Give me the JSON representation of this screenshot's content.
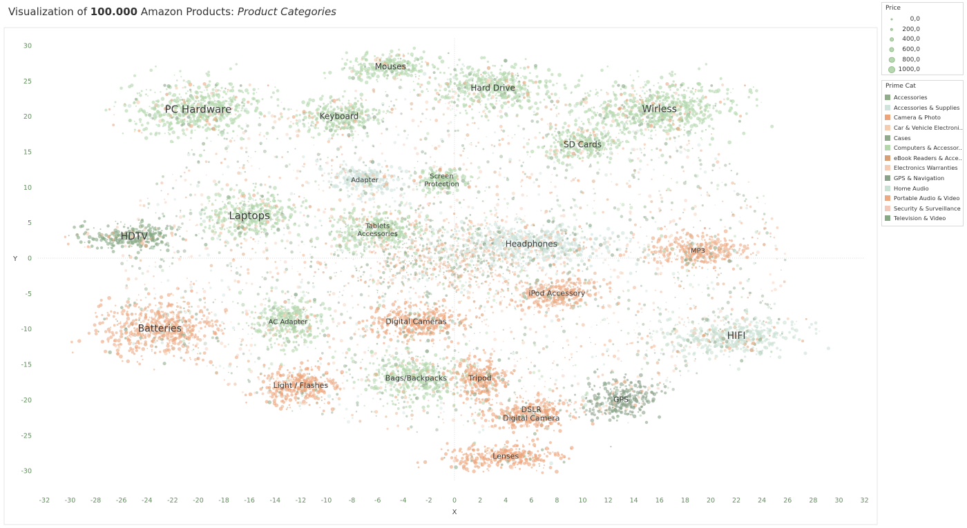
{
  "title": {
    "prefix": "Visualization of ",
    "count": "100.000",
    "middle": " Amazon Products: ",
    "suffix": "Product Categories"
  },
  "price_legend": {
    "title": "Price",
    "items": [
      {
        "label": "0,0",
        "value": 0
      },
      {
        "label": "200,0",
        "value": 200
      },
      {
        "label": "400,0",
        "value": 400
      },
      {
        "label": "600,0",
        "value": 600
      },
      {
        "label": "800,0",
        "value": 800
      },
      {
        "label": "1000,0",
        "value": 1000
      }
    ]
  },
  "category_legend": {
    "title": "Prime Cat",
    "items": [
      {
        "label": "Accessories",
        "color": "#90ad8a"
      },
      {
        "label": "Accessories & Supplies",
        "color": "#cfe3dc"
      },
      {
        "label": "Camera & Photo",
        "color": "#eda47a"
      },
      {
        "label": "Car & Vehicle Electroni..",
        "color": "#f4cdb1"
      },
      {
        "label": "Cases",
        "color": "#91a98c"
      },
      {
        "label": "Computers & Accessor..",
        "color": "#b3d7ab"
      },
      {
        "label": "eBook Readers & Acce..",
        "color": "#d89f75"
      },
      {
        "label": "Electronics Warranties",
        "color": "#f3ccb3"
      },
      {
        "label": "GPS & Navigation",
        "color": "#8aa28a"
      },
      {
        "label": "Home Audio",
        "color": "#c9e1d3"
      },
      {
        "label": "Portable Audio & Video",
        "color": "#ecaa83"
      },
      {
        "label": "Security & Surveillance",
        "color": "#f2c9b8"
      },
      {
        "label": "Television & Video",
        "color": "#86a884"
      }
    ]
  },
  "chart_data": {
    "type": "scatter",
    "xlabel": "X",
    "ylabel": "Y",
    "xlim": [
      -33,
      33
    ],
    "ylim": [
      -33,
      32
    ],
    "xticks": [
      -32,
      -30,
      -28,
      -26,
      -24,
      -22,
      -20,
      -18,
      -16,
      -14,
      -12,
      -10,
      -8,
      -6,
      -4,
      -2,
      0,
      2,
      4,
      6,
      8,
      10,
      12,
      14,
      16,
      18,
      20,
      22,
      24,
      26,
      28,
      30,
      32
    ],
    "yticks": [
      30,
      25,
      20,
      15,
      10,
      5,
      0,
      -5,
      -10,
      -15,
      -20,
      -25,
      -30
    ],
    "grid": false,
    "legend": "right",
    "size_encoding": "Price",
    "color_encoding": "Prime Cat",
    "clusters": [
      {
        "label": "PC Hardware",
        "x": -20,
        "y": 21,
        "sx": 4.5,
        "sy": 3.5,
        "color": "#b3d7ab",
        "size": 15
      },
      {
        "label": "Mouses",
        "x": -5,
        "y": 27,
        "sx": 3,
        "sy": 1.7,
        "color": "#b3d7ab",
        "size": 12
      },
      {
        "label": "Hard Drive",
        "x": 3,
        "y": 24,
        "sx": 4,
        "sy": 3,
        "color": "#b3d7ab",
        "size": 12
      },
      {
        "label": "Keyboard",
        "x": -9,
        "y": 20,
        "sx": 2.8,
        "sy": 2.2,
        "color": "#b3d7ab",
        "size": 12
      },
      {
        "label": "Wirless",
        "x": 16,
        "y": 21,
        "sx": 5.5,
        "sy": 3.5,
        "color": "#b3d7ab",
        "size": 14
      },
      {
        "label": "SD Cards",
        "x": 10,
        "y": 16,
        "sx": 2.5,
        "sy": 2,
        "color": "#b3d7ab",
        "size": 12
      },
      {
        "label": "Adapter",
        "x": -7,
        "y": 11,
        "sx": 2.5,
        "sy": 2,
        "color": "#cfe3dc",
        "size": 10
      },
      {
        "label": "Screen\nProtection",
        "x": -1,
        "y": 11,
        "sx": 1.7,
        "sy": 1.5,
        "color": "#b3d7ab",
        "size": 10
      },
      {
        "label": "Laptops",
        "x": -16,
        "y": 6,
        "sx": 3.2,
        "sy": 2.8,
        "color": "#b3d7ab",
        "size": 15
      },
      {
        "label": "HDTV",
        "x": -25,
        "y": 3,
        "sx": 3.5,
        "sy": 1.6,
        "color": "#86a884",
        "size": 14
      },
      {
        "label": "Tablets\nAccessories",
        "x": -6,
        "y": 4,
        "sx": 3,
        "sy": 2.5,
        "color": "#b3d7ab",
        "size": 10
      },
      {
        "label": "Headphones",
        "x": 6,
        "y": 2,
        "sx": 5.5,
        "sy": 2.5,
        "color": "#cfe3dc",
        "size": 12
      },
      {
        "label": "MP3",
        "x": 19,
        "y": 1,
        "sx": 3.5,
        "sy": 2,
        "color": "#ecaa83",
        "size": 10
      },
      {
        "label": "iPod Accessory",
        "x": 8,
        "y": -5,
        "sx": 3,
        "sy": 2,
        "color": "#ecaa83",
        "size": 11
      },
      {
        "label": "Batteries",
        "x": -23,
        "y": -10,
        "sx": 4,
        "sy": 3.5,
        "color": "#ecaa83",
        "size": 14
      },
      {
        "label": "AC Adapter",
        "x": -13,
        "y": -9,
        "sx": 2.5,
        "sy": 3,
        "color": "#b3d7ab",
        "size": 10
      },
      {
        "label": "Digital Cameras",
        "x": -3,
        "y": -9,
        "sx": 3.5,
        "sy": 2.2,
        "color": "#eda47a",
        "size": 11
      },
      {
        "label": "HIFI",
        "x": 22,
        "y": -11,
        "sx": 4.5,
        "sy": 2.5,
        "color": "#c9e1d3",
        "size": 14
      },
      {
        "label": "Light / Flashes",
        "x": -12,
        "y": -18,
        "sx": 2.5,
        "sy": 2.5,
        "color": "#eda47a",
        "size": 11
      },
      {
        "label": "Bags/Backpacks",
        "x": -3,
        "y": -17,
        "sx": 3.5,
        "sy": 3,
        "color": "#b3d7ab",
        "size": 11
      },
      {
        "label": "Tripod",
        "x": 2,
        "y": -17,
        "sx": 1.8,
        "sy": 2.5,
        "color": "#eda47a",
        "size": 11
      },
      {
        "label": "GPS",
        "x": 13,
        "y": -20,
        "sx": 2.5,
        "sy": 2.5,
        "color": "#8aa28a",
        "size": 11
      },
      {
        "label": "DSLR\nDigital Camera",
        "x": 6,
        "y": -22,
        "sx": 3,
        "sy": 2,
        "color": "#eda47a",
        "size": 11
      },
      {
        "label": "Lenses",
        "x": 4,
        "y": -28,
        "sx": 4,
        "sy": 1.6,
        "color": "#eda47a",
        "size": 11
      }
    ]
  }
}
